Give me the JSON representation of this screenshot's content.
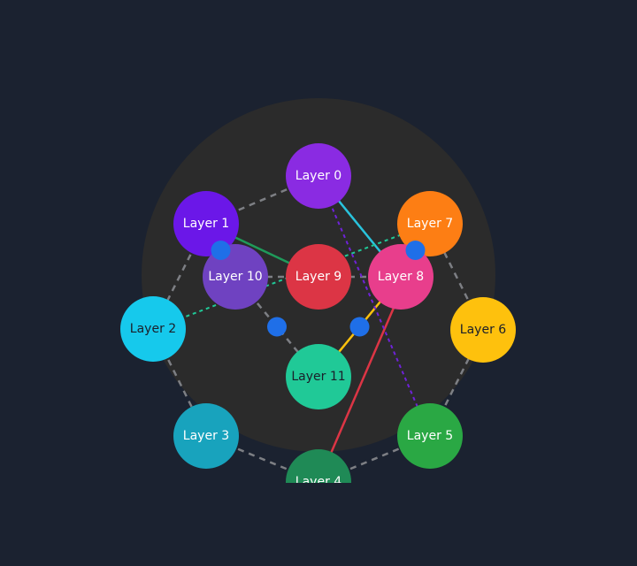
{
  "colors": {
    "background": "#1b2230",
    "panel": "#2b2b2b",
    "dashed_edge": "#7d7f84",
    "connector_dot": "#1f6fe8",
    "label_light": "#ffffff",
    "label_dark": "#1b1f2a"
  },
  "nodes": [
    {
      "id": "n0",
      "label": "Layer 0",
      "color": "#8a2be2",
      "label_color": "#ffffff"
    },
    {
      "id": "n1",
      "label": "Layer 1",
      "color": "#6b17e8",
      "label_color": "#ffffff"
    },
    {
      "id": "n2",
      "label": "Layer 2",
      "color": "#16c9ec",
      "label_color": "#1b1f2a"
    },
    {
      "id": "n3",
      "label": "Layer 3",
      "color": "#18a3bd",
      "label_color": "#ffffff"
    },
    {
      "id": "n4",
      "label": "Layer 4",
      "color": "#1f8a56",
      "label_color": "#ffffff"
    },
    {
      "id": "n5",
      "label": "Layer 5",
      "color": "#2aa844",
      "label_color": "#ffffff"
    },
    {
      "id": "n6",
      "label": "Layer 6",
      "color": "#fec10d",
      "label_color": "#1b1f2a"
    },
    {
      "id": "n7",
      "label": "Layer 7",
      "color": "#fd7e14",
      "label_color": "#ffffff"
    },
    {
      "id": "n8",
      "label": "Layer 8",
      "color": "#e83e8c",
      "label_color": "#ffffff"
    },
    {
      "id": "n9",
      "label": "Layer 9",
      "color": "#dc3545",
      "label_color": "#ffffff"
    },
    {
      "id": "n10",
      "label": "Layer 10",
      "color": "#6f42c1",
      "label_color": "#ffffff"
    },
    {
      "id": "n11",
      "label": "Layer 11",
      "color": "#20c997",
      "label_color": "#1b1f2a"
    }
  ],
  "ring_edges": [
    [
      "n0",
      "n1"
    ],
    [
      "n1",
      "n2"
    ],
    [
      "n2",
      "n3"
    ],
    [
      "n3",
      "n4"
    ],
    [
      "n4",
      "n5"
    ],
    [
      "n5",
      "n6"
    ],
    [
      "n6",
      "n7"
    ],
    [
      "n7",
      "n8"
    ],
    [
      "n8",
      "n9"
    ],
    [
      "n9",
      "n10"
    ],
    [
      "n10",
      "n11"
    ]
  ],
  "colored_edges": [
    {
      "from": "n0",
      "to": "n8",
      "color": "#29c3dc",
      "style": "solid"
    },
    {
      "from": "n1",
      "to": "n9",
      "color": "#1f9a5a",
      "style": "solid"
    },
    {
      "from": "n2",
      "to": "n7",
      "color": "#20c997",
      "style": "dashed"
    },
    {
      "from": "n4",
      "to": "n7",
      "color": "#dc3545",
      "style": "solid"
    },
    {
      "from": "n11",
      "to": "n8",
      "color": "#fec10d",
      "style": "solid"
    },
    {
      "from": "n0",
      "to": "n5",
      "color": "#6f22d9",
      "style": "dashed"
    }
  ],
  "connector_dots": [
    {
      "between": [
        "n1",
        "n10"
      ]
    },
    {
      "between": [
        "n7",
        "n8"
      ]
    },
    {
      "between": [
        "n10",
        "n11"
      ]
    },
    {
      "between": [
        "n8",
        "n11"
      ]
    }
  ]
}
